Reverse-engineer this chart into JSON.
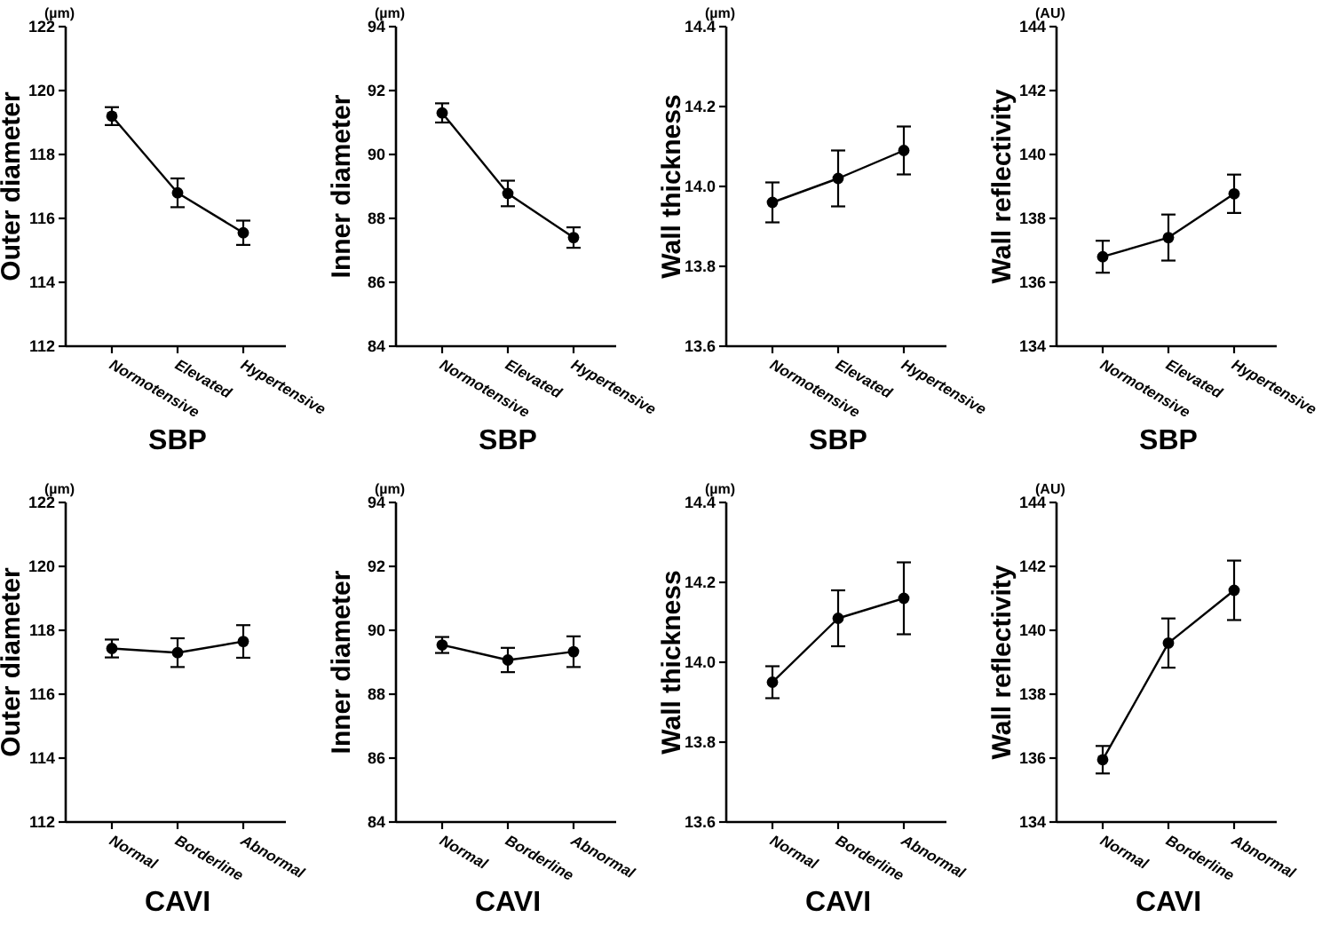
{
  "chart_data": [
    {
      "type": "line",
      "ylabel": "Outer diameter",
      "xlabel": "SBP",
      "annotations": [
        "(µm)"
      ],
      "categories": [
        "Normotensive",
        "Elevated",
        "Hypertensive"
      ],
      "values": [
        119.2,
        116.8,
        115.55
      ],
      "errors": [
        0.28,
        0.45,
        0.38
      ],
      "color": "#000000",
      "marker": "circle",
      "ylim": [
        112,
        122
      ],
      "yticks": [
        112,
        114,
        116,
        118,
        120,
        122
      ]
    },
    {
      "type": "line",
      "ylabel": "Inner diameter",
      "xlabel": "SBP",
      "annotations": [
        "(µm)"
      ],
      "categories": [
        "Normotensive",
        "Elevated",
        "Hypertensive"
      ],
      "values": [
        91.3,
        88.78,
        87.4
      ],
      "errors": [
        0.3,
        0.4,
        0.32
      ],
      "color": "#000000",
      "marker": "circle",
      "ylim": [
        84,
        94
      ],
      "yticks": [
        84,
        86,
        88,
        90,
        92,
        94
      ]
    },
    {
      "type": "line",
      "ylabel": "Wall thickness",
      "xlabel": "SBP",
      "annotations": [
        "(µm)"
      ],
      "categories": [
        "Normotensive",
        "Elevated",
        "Hypertensive"
      ],
      "values": [
        13.96,
        14.02,
        14.09
      ],
      "errors": [
        0.05,
        0.07,
        0.06
      ],
      "color": "#000000",
      "marker": "circle",
      "ylim": [
        13.6,
        14.4
      ],
      "yticks": [
        13.6,
        13.8,
        {
          "value": 14,
          "label": "14.0"
        },
        14.2,
        14.4
      ]
    },
    {
      "type": "line",
      "ylabel": "Wall reflectivity",
      "xlabel": "SBP",
      "annotations": [
        "(AU)"
      ],
      "categories": [
        "Normotensive",
        "Elevated",
        "Hypertensive"
      ],
      "values": [
        136.8,
        137.4,
        138.77
      ],
      "errors": [
        0.5,
        0.72,
        0.6
      ],
      "color": "#000000",
      "marker": "circle",
      "ylim": [
        134,
        144
      ],
      "yticks": [
        134,
        136,
        138,
        140,
        142,
        144
      ]
    },
    {
      "type": "line",
      "ylabel": "Outer diameter",
      "xlabel": "CAVI",
      "annotations": [
        "(µm)"
      ],
      "categories": [
        "Normal",
        "Borderline",
        "Abnormal"
      ],
      "values": [
        117.43,
        117.3,
        117.65
      ],
      "errors": [
        0.28,
        0.45,
        0.51
      ],
      "color": "#000000",
      "marker": "circle",
      "ylim": [
        112,
        122
      ],
      "yticks": [
        112,
        114,
        116,
        118,
        120,
        122
      ]
    },
    {
      "type": "line",
      "ylabel": "Inner diameter",
      "xlabel": "CAVI",
      "annotations": [
        "(µm)"
      ],
      "categories": [
        "Normal",
        "Borderline",
        "Abnormal"
      ],
      "values": [
        89.54,
        89.07,
        89.33
      ],
      "errors": [
        0.25,
        0.38,
        0.48
      ],
      "color": "#000000",
      "marker": "circle",
      "ylim": [
        84,
        94
      ],
      "yticks": [
        84,
        86,
        88,
        90,
        92,
        94
      ]
    },
    {
      "type": "line",
      "ylabel": "Wall thickness",
      "xlabel": "CAVI",
      "annotations": [
        "(µm)"
      ],
      "categories": [
        "Normal",
        "Borderline",
        "Abnormal"
      ],
      "values": [
        13.95,
        14.11,
        14.16
      ],
      "errors": [
        0.04,
        0.07,
        0.09
      ],
      "color": "#000000",
      "marker": "circle",
      "ylim": [
        13.6,
        14.4
      ],
      "yticks": [
        13.6,
        13.8,
        {
          "value": 14,
          "label": "14.0"
        },
        14.2,
        14.4
      ]
    },
    {
      "type": "line",
      "ylabel": "Wall reflectivity",
      "xlabel": "CAVI",
      "annotations": [
        "(AU)"
      ],
      "categories": [
        "Normal",
        "Borderline",
        "Abnormal"
      ],
      "values": [
        135.95,
        139.6,
        141.25
      ],
      "errors": [
        0.43,
        0.77,
        0.93
      ],
      "color": "#000000",
      "marker": "circle",
      "ylim": [
        134,
        144
      ],
      "yticks": [
        134,
        136,
        138,
        140,
        142,
        144
      ]
    }
  ]
}
